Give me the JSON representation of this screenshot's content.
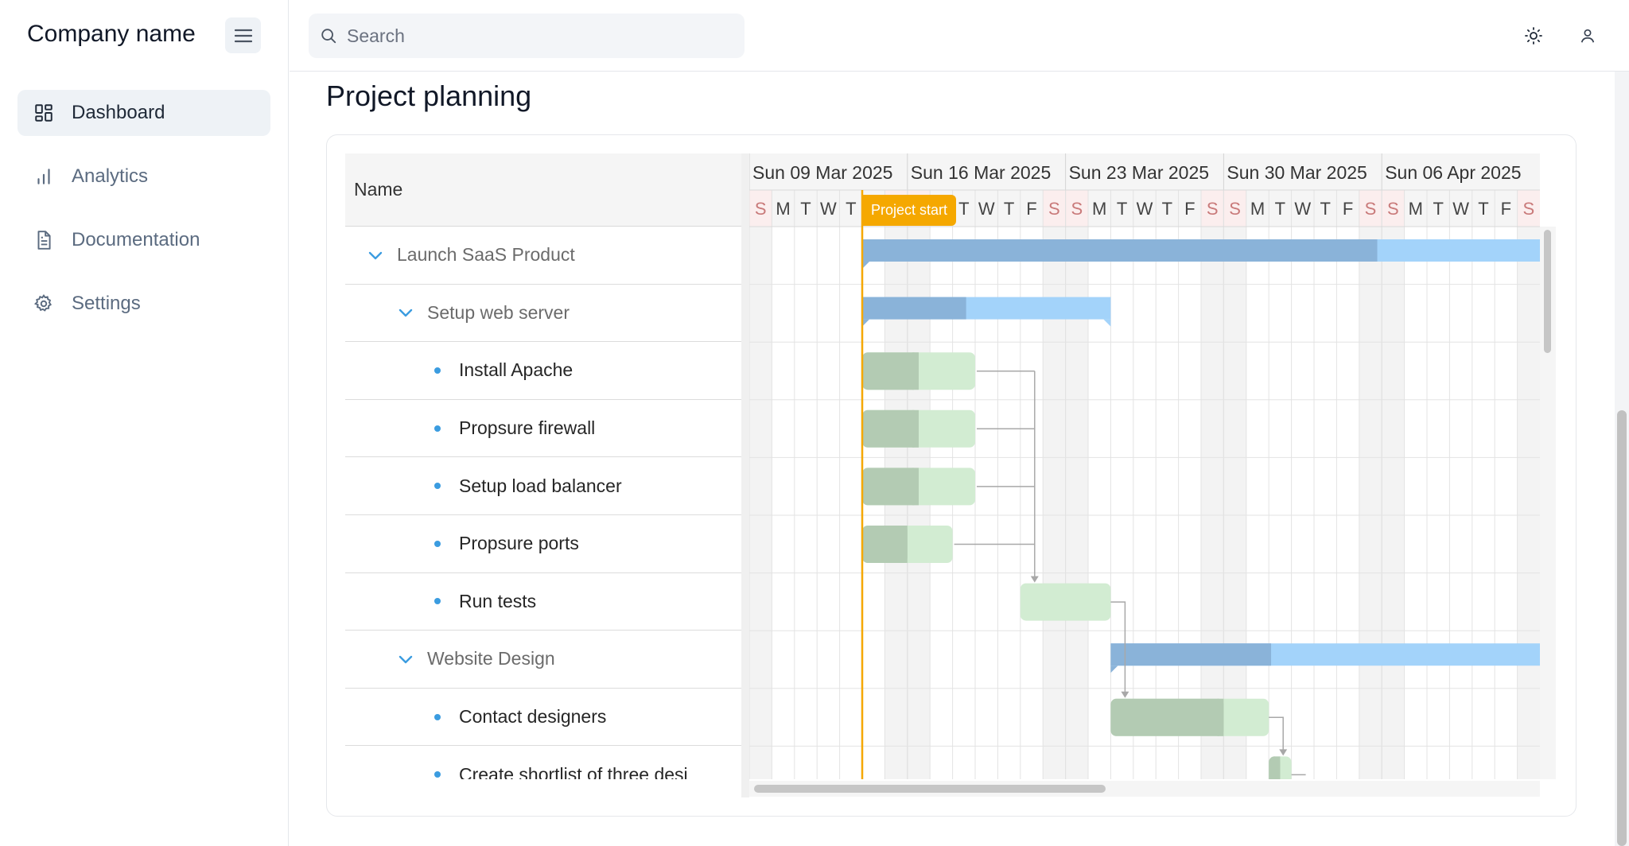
{
  "sidebar": {
    "company_name": "Company name",
    "menu_toggle_icon": "hamburger-icon",
    "items": [
      {
        "label": "Dashboard",
        "icon": "dashboard-icon",
        "active": true
      },
      {
        "label": "Analytics",
        "icon": "bar-chart-icon",
        "active": false
      },
      {
        "label": "Documentation",
        "icon": "document-icon",
        "active": false
      },
      {
        "label": "Settings",
        "icon": "gear-icon",
        "active": false
      }
    ]
  },
  "topbar": {
    "search_placeholder": "Search",
    "search_icon": "search-icon",
    "theme_icon": "sun-icon",
    "user_icon": "user-icon"
  },
  "page": {
    "title": "Project planning"
  },
  "gantt": {
    "name_header": "Name",
    "tasks": [
      {
        "name": "Launch SaaS Product",
        "type": "summary",
        "level": 0
      },
      {
        "name": "Setup web server",
        "type": "summary",
        "level": 1
      },
      {
        "name": "Install Apache",
        "type": "task",
        "level": 2
      },
      {
        "name": "Propsure firewall",
        "type": "task",
        "level": 2
      },
      {
        "name": "Setup load balancer",
        "type": "task",
        "level": 2
      },
      {
        "name": "Propsure ports",
        "type": "task",
        "level": 2
      },
      {
        "name": "Run tests",
        "type": "task",
        "level": 2
      },
      {
        "name": "Website Design",
        "type": "summary",
        "level": 1
      },
      {
        "name": "Contact designers",
        "type": "task",
        "level": 2
      },
      {
        "name": "Create shortlist of three desi",
        "type": "task",
        "level": 2
      }
    ],
    "weeks": [
      "Sun 09 Mar 2025",
      "Sun 16 Mar 2025",
      "Sun 23 Mar 2025",
      "Sun 30 Mar 2025",
      "Sun 06 Apr 2025"
    ],
    "day_letters": [
      "S",
      "M",
      "T",
      "W",
      "T",
      "F",
      "S"
    ],
    "marker_label": "Project start",
    "colors": {
      "summary_progress": "#8ab3d9",
      "summary_rest": "#a3d3fa",
      "task_progress": "#b3cbb3",
      "task_rest": "#d2ecd2",
      "marker": "#f5a800",
      "weekend_header_text": "#c97a7a",
      "weekend_header_bg": "#fbeeee"
    }
  }
}
